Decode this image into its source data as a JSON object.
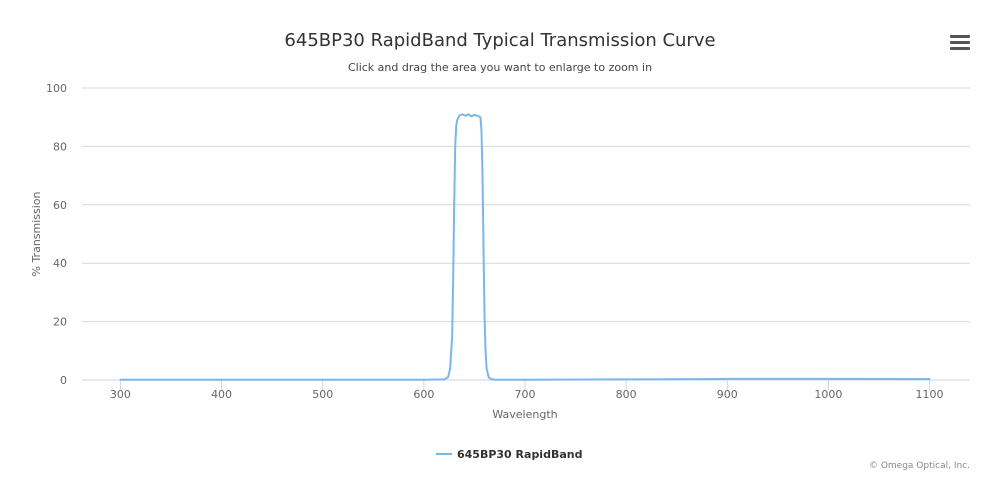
{
  "title": "645BP30 RapidBand Typical Transmission Curve",
  "subtitle": "Click and drag the area you want to enlarge to zoom in",
  "menu_icon": "hamburger-menu-icon",
  "credits": "© Omega Optical, Inc.",
  "chart_data": {
    "type": "line",
    "title": "645BP30 RapidBand Typical Transmission Curve",
    "subtitle": "Click and drag the area you want to enlarge to zoom in",
    "xlabel": "Wavelength",
    "ylabel": "% Transmission",
    "xlim": [
      262,
      1140
    ],
    "ylim": [
      0,
      100
    ],
    "xticks": [
      300,
      400,
      500,
      600,
      700,
      800,
      900,
      1000,
      1100
    ],
    "yticks": [
      0,
      20,
      40,
      60,
      80,
      100
    ],
    "grid": true,
    "legend_position": "bottom-center",
    "series": [
      {
        "name": "645BP30 RapidBand",
        "color": "#7cb5ec",
        "x": [
          300,
          400,
          500,
          600,
          620,
          624,
          626,
          628,
          629,
          630,
          631,
          632,
          633,
          635,
          638,
          641,
          644,
          647,
          650,
          653,
          656,
          657,
          658,
          659,
          660,
          661,
          662,
          664,
          666,
          668,
          670,
          680,
          700,
          800,
          880,
          900,
          1000,
          1100
        ],
        "y": [
          0.1,
          0.1,
          0.1,
          0.1,
          0.2,
          1,
          4,
          15,
          35,
          60,
          80,
          87,
          89,
          90.5,
          91,
          90.5,
          91,
          90.3,
          90.8,
          90.5,
          90,
          85,
          70,
          45,
          22,
          10,
          4,
          1,
          0.4,
          0.2,
          0.1,
          0.1,
          0.1,
          0.2,
          0.3,
          0.4,
          0.4,
          0.3
        ]
      }
    ]
  }
}
